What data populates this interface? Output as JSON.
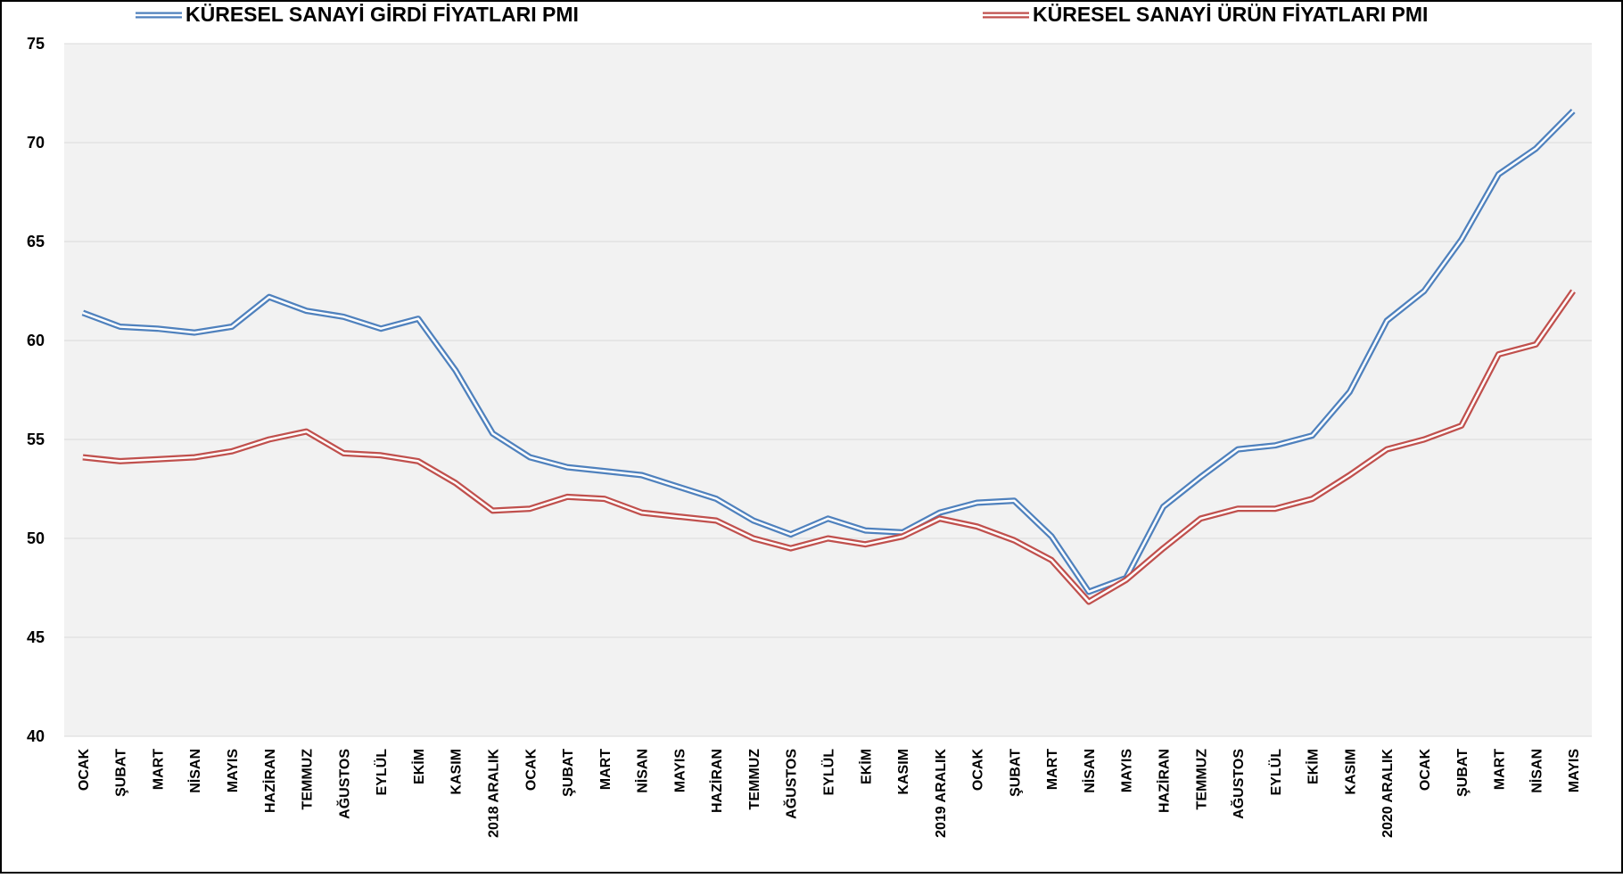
{
  "chart_data": {
    "type": "line",
    "categories": [
      "OCAK",
      "ŞUBAT",
      "MART",
      "NİSAN",
      "MAYIS",
      "HAZİRAN",
      "TEMMUZ",
      "AĞUSTOS",
      "EYLÜL",
      "EKİM",
      "KASIM",
      "2018 ARALIK",
      "OCAK",
      "ŞUBAT",
      "MART",
      "NİSAN",
      "MAYIS",
      "HAZİRAN",
      "TEMMUZ",
      "AĞUSTOS",
      "EYLÜL",
      "EKİM",
      "KASIM",
      "2019 ARALIK",
      "OCAK",
      "ŞUBAT",
      "MART",
      "NİSAN",
      "MAYIS",
      "HAZİRAN",
      "TEMMUZ",
      "AĞUSTOS",
      "EYLÜL",
      "EKİM",
      "KASIM",
      "2020 ARALIK",
      "OCAK",
      "ŞUBAT",
      "MART",
      "NİSAN",
      "MAYIS"
    ],
    "series": [
      {
        "name": "KÜRESEL SANAYİ GİRDİ FİYATLARI PMI",
        "color": "#4f81bd",
        "values": [
          61.4,
          60.7,
          60.6,
          60.4,
          60.7,
          62.2,
          61.5,
          61.2,
          60.6,
          61.1,
          58.5,
          55.3,
          54.1,
          53.6,
          53.4,
          53.2,
          52.6,
          52.0,
          50.9,
          50.2,
          51.0,
          50.4,
          50.3,
          51.3,
          51.8,
          51.9,
          50.1,
          47.3,
          48.0,
          51.6,
          53.1,
          54.5,
          54.7,
          55.2,
          57.4,
          61.0,
          62.5,
          65.1,
          68.4,
          69.7,
          71.6
        ]
      },
      {
        "name": "KÜRESEL SANAYİ ÜRÜN FİYATLARI PMI",
        "color": "#c0504d",
        "values": [
          54.1,
          53.9,
          54.0,
          54.1,
          54.4,
          55.0,
          55.4,
          54.3,
          54.2,
          53.9,
          52.8,
          51.4,
          51.5,
          52.1,
          52.0,
          51.3,
          51.1,
          50.9,
          50.0,
          49.5,
          50.0,
          49.7,
          50.1,
          51.0,
          50.6,
          49.9,
          48.9,
          46.8,
          47.9,
          49.5,
          51.0,
          51.5,
          51.5,
          52.0,
          53.2,
          54.5,
          55.0,
          55.7,
          59.3,
          59.8,
          62.5
        ]
      }
    ],
    "ylim": [
      40,
      75
    ],
    "yticks": [
      40,
      45,
      50,
      55,
      60,
      65,
      70,
      75
    ],
    "grid": true
  }
}
